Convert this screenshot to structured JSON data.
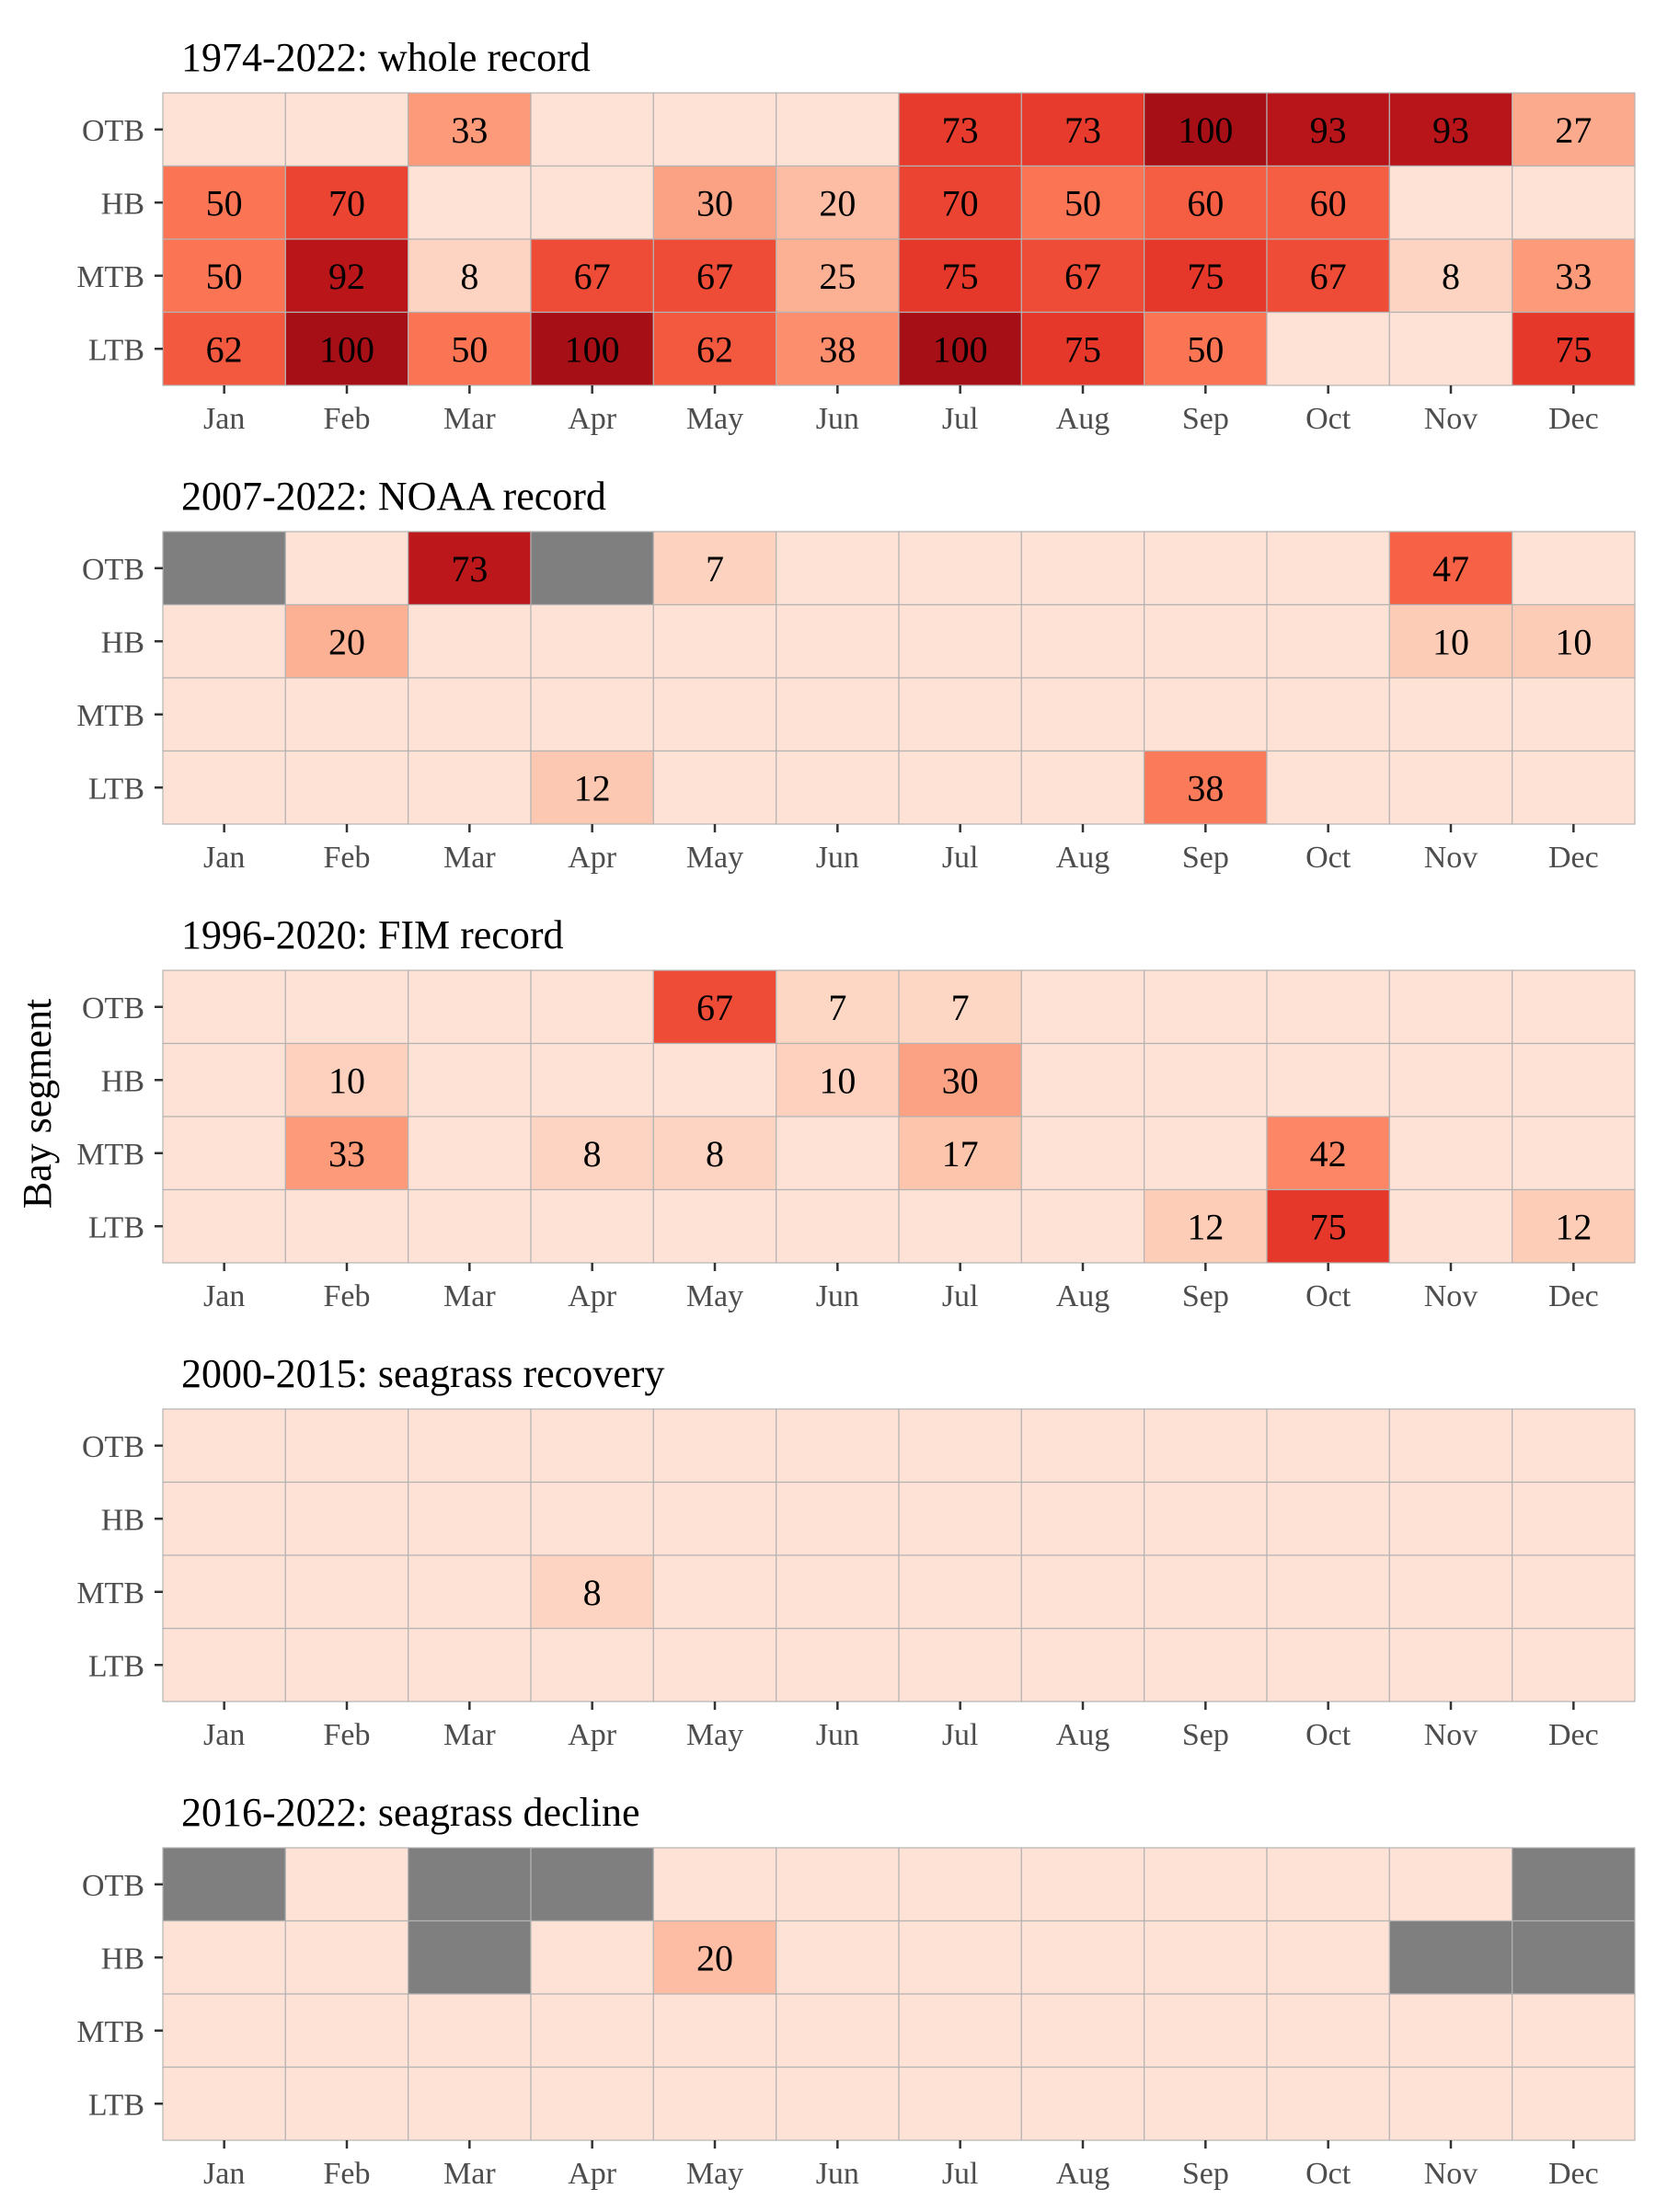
{
  "ylabel": "Bay segment",
  "colors": {
    "na": "#7f7f7f",
    "zero": "#fee2d5",
    "grid": "#b3b3b3",
    "tick": "#333333"
  },
  "chart_data": [
    {
      "type": "heatmap",
      "title": "1974-2022: whole record",
      "x": [
        "Jan",
        "Feb",
        "Mar",
        "Apr",
        "May",
        "Jun",
        "Jul",
        "Aug",
        "Sep",
        "Oct",
        "Nov",
        "Dec"
      ],
      "y": [
        "OTB",
        "HB",
        "MTB",
        "LTB"
      ],
      "values": [
        [
          0,
          0,
          33,
          0,
          0,
          0,
          73,
          73,
          100,
          93,
          93,
          27
        ],
        [
          50,
          70,
          0,
          0,
          30,
          20,
          70,
          50,
          60,
          60,
          0,
          0
        ],
        [
          50,
          92,
          8,
          67,
          67,
          25,
          75,
          67,
          75,
          67,
          8,
          33
        ],
        [
          62,
          100,
          50,
          100,
          62,
          38,
          100,
          75,
          50,
          0,
          0,
          75
        ]
      ],
      "labels": [
        [
          "",
          "",
          "33",
          "",
          "",
          "",
          "73",
          "73",
          "100",
          "93",
          "93",
          "27"
        ],
        [
          "50",
          "70",
          "",
          "",
          "30",
          "20",
          "70",
          "50",
          "60",
          "60",
          "",
          ""
        ],
        [
          "50",
          "92",
          "8",
          "67",
          "67",
          "25",
          "75",
          "67",
          "75",
          "67",
          "8",
          "33"
        ],
        [
          "62",
          "100",
          "50",
          "100",
          "62",
          "38",
          "100",
          "75",
          "50",
          "",
          "",
          "75"
        ]
      ],
      "scale_max": 100
    },
    {
      "type": "heatmap",
      "title": "2007-2022: NOAA record",
      "x": [
        "Jan",
        "Feb",
        "Mar",
        "Apr",
        "May",
        "Jun",
        "Jul",
        "Aug",
        "Sep",
        "Oct",
        "Nov",
        "Dec"
      ],
      "y": [
        "OTB",
        "HB",
        "MTB",
        "LTB"
      ],
      "values": [
        [
          null,
          0,
          73,
          null,
          7,
          0,
          0,
          0,
          0,
          0,
          47,
          0
        ],
        [
          0,
          20,
          0,
          0,
          0,
          0,
          0,
          0,
          0,
          0,
          10,
          10
        ],
        [
          0,
          0,
          0,
          0,
          0,
          0,
          0,
          0,
          0,
          0,
          0,
          0
        ],
        [
          0,
          0,
          0,
          12,
          0,
          0,
          0,
          0,
          38,
          0,
          0,
          0
        ]
      ],
      "labels": [
        [
          "",
          "",
          "73",
          "",
          "7",
          "",
          "",
          "",
          "",
          "",
          "47",
          ""
        ],
        [
          "",
          "20",
          "",
          "",
          "",
          "",
          "",
          "",
          "",
          "",
          "10",
          "10"
        ],
        [
          "",
          "",
          "",
          "",
          "",
          "",
          "",
          "",
          "",
          "",
          "",
          ""
        ],
        [
          "",
          "",
          "",
          "12",
          "",
          "",
          "",
          "",
          "38",
          "",
          "",
          ""
        ]
      ],
      "scale_max": 80
    },
    {
      "type": "heatmap",
      "title": "1996-2020: FIM record",
      "x": [
        "Jan",
        "Feb",
        "Mar",
        "Apr",
        "May",
        "Jun",
        "Jul",
        "Aug",
        "Sep",
        "Oct",
        "Nov",
        "Dec"
      ],
      "y": [
        "OTB",
        "HB",
        "MTB",
        "LTB"
      ],
      "values": [
        [
          0,
          0,
          0,
          0,
          67,
          7,
          7,
          0,
          0,
          0,
          0,
          0
        ],
        [
          0,
          10,
          0,
          0,
          0,
          10,
          30,
          0,
          0,
          0,
          0,
          0
        ],
        [
          0,
          33,
          0,
          8,
          8,
          0,
          17,
          0,
          0,
          42,
          0,
          0
        ],
        [
          0,
          0,
          0,
          0,
          0,
          0,
          0,
          0,
          12,
          75,
          0,
          12
        ]
      ],
      "labels": [
        [
          "",
          "",
          "",
          "",
          "67",
          "7",
          "7",
          "",
          "",
          "",
          "",
          ""
        ],
        [
          "",
          "10",
          "",
          "",
          "",
          "10",
          "30",
          "",
          "",
          "",
          "",
          ""
        ],
        [
          "",
          "33",
          "",
          "8",
          "8",
          "",
          "17",
          "",
          "",
          "42",
          "",
          ""
        ],
        [
          "",
          "",
          "",
          "",
          "",
          "",
          "",
          "",
          "12",
          "75",
          "",
          "12"
        ]
      ],
      "scale_max": 100
    },
    {
      "type": "heatmap",
      "title": "2000-2015: seagrass recovery",
      "x": [
        "Jan",
        "Feb",
        "Mar",
        "Apr",
        "May",
        "Jun",
        "Jul",
        "Aug",
        "Sep",
        "Oct",
        "Nov",
        "Dec"
      ],
      "y": [
        "OTB",
        "HB",
        "MTB",
        "LTB"
      ],
      "values": [
        [
          0,
          0,
          0,
          0,
          0,
          0,
          0,
          0,
          0,
          0,
          0,
          0
        ],
        [
          0,
          0,
          0,
          0,
          0,
          0,
          0,
          0,
          0,
          0,
          0,
          0
        ],
        [
          0,
          0,
          0,
          8,
          0,
          0,
          0,
          0,
          0,
          0,
          0,
          0
        ],
        [
          0,
          0,
          0,
          0,
          0,
          0,
          0,
          0,
          0,
          0,
          0,
          0
        ]
      ],
      "labels": [
        [
          "",
          "",
          "",
          "",
          "",
          "",
          "",
          "",
          "",
          "",
          "",
          ""
        ],
        [
          "",
          "",
          "",
          "",
          "",
          "",
          "",
          "",
          "",
          "",
          "",
          ""
        ],
        [
          "",
          "",
          "",
          "8",
          "",
          "",
          "",
          "",
          "",
          "",
          "",
          ""
        ],
        [
          "",
          "",
          "",
          "",
          "",
          "",
          "",
          "",
          "",
          "",
          "",
          ""
        ]
      ],
      "scale_max": 100
    },
    {
      "type": "heatmap",
      "title": "2016-2022: seagrass decline",
      "x": [
        "Jan",
        "Feb",
        "Mar",
        "Apr",
        "May",
        "Jun",
        "Jul",
        "Aug",
        "Sep",
        "Oct",
        "Nov",
        "Dec"
      ],
      "y": [
        "OTB",
        "HB",
        "MTB",
        "LTB"
      ],
      "values": [
        [
          null,
          0,
          null,
          null,
          0,
          0,
          0,
          0,
          0,
          0,
          0,
          null
        ],
        [
          0,
          0,
          null,
          0,
          20,
          0,
          0,
          0,
          0,
          0,
          null,
          null
        ],
        [
          0,
          0,
          0,
          0,
          0,
          0,
          0,
          0,
          0,
          0,
          0,
          0
        ],
        [
          0,
          0,
          0,
          0,
          0,
          0,
          0,
          0,
          0,
          0,
          0,
          0
        ]
      ],
      "labels": [
        [
          "",
          "",
          "",
          "",
          "",
          "",
          "",
          "",
          "",
          "",
          "",
          ""
        ],
        [
          "",
          "",
          "",
          "",
          "20",
          "",
          "",
          "",
          "",
          "",
          "",
          ""
        ],
        [
          "",
          "",
          "",
          "",
          "",
          "",
          "",
          "",
          "",
          "",
          "",
          ""
        ],
        [
          "",
          "",
          "",
          "",
          "",
          "",
          "",
          "",
          "",
          "",
          "",
          ""
        ]
      ],
      "scale_max": 100
    }
  ]
}
